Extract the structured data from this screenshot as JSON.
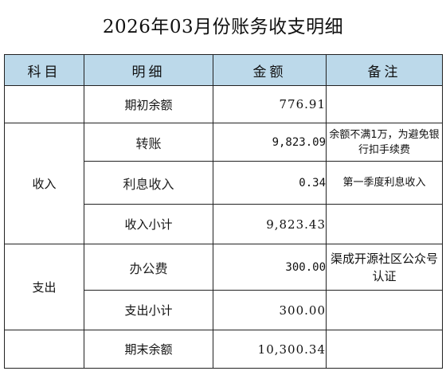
{
  "title": "2026年03月份账务收支明细",
  "headers": {
    "subject": "科目",
    "detail": "明细",
    "amount": "金额",
    "remark": "备注"
  },
  "opening": {
    "label": "期初余额",
    "amount": "776.91",
    "remark": ""
  },
  "income": {
    "subject": "收入",
    "rows": [
      {
        "detail": "转账",
        "amount": "9,823.09",
        "remark": "余额不满1万，为避免银行扣手续费"
      },
      {
        "detail": "利息收入",
        "amount": "0.34",
        "remark": "第一季度利息收入"
      }
    ],
    "subtotal": {
      "label": "收入小计",
      "amount": "9,823.43"
    }
  },
  "expense": {
    "subject": "支出",
    "rows": [
      {
        "detail": "办公费",
        "amount": "300.00",
        "remark": "渠成开源社区公众号认证"
      }
    ],
    "subtotal": {
      "label": "支出小计",
      "amount": "300.00"
    }
  },
  "closing": {
    "label": "期末余额",
    "amount": "10,300.34",
    "remark": ""
  }
}
